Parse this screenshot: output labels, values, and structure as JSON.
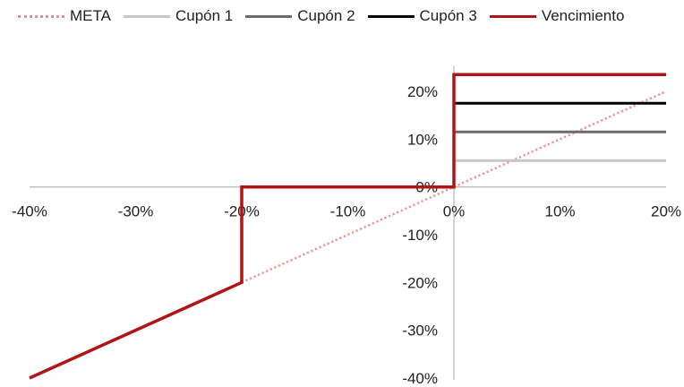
{
  "chart_data": {
    "type": "line",
    "title": "",
    "xlabel": "",
    "ylabel": "",
    "xlim": [
      -0.4,
      0.2
    ],
    "ylim": [
      -0.4,
      0.25
    ],
    "x_ticks": [
      -0.4,
      -0.3,
      -0.2,
      -0.1,
      0,
      0.1,
      0.2
    ],
    "x_tick_labels": [
      "-40%",
      "-30%",
      "-20%",
      "-10%",
      "0%",
      "10%",
      "20%"
    ],
    "y_ticks": [
      0.2,
      0.1,
      0,
      -0.1,
      -0.2,
      -0.3,
      -0.4
    ],
    "y_tick_labels": [
      "20%",
      "10%",
      "0%",
      "-10%",
      "-20%",
      "-30%",
      "-40%"
    ],
    "grid": false,
    "legend_position": "top",
    "series": [
      {
        "name": "META",
        "color": "#f08a8a",
        "style": "dotted",
        "points": [
          [
            -0.2,
            -0.2
          ],
          [
            0.2,
            0.2
          ]
        ]
      },
      {
        "name": "Cupón 1",
        "color": "#c6c6c6",
        "style": "solid",
        "points": [
          [
            0,
            0.055
          ],
          [
            0.2,
            0.055
          ]
        ]
      },
      {
        "name": "Cupón 2",
        "color": "#6b6b6b",
        "style": "solid",
        "points": [
          [
            0,
            0.115
          ],
          [
            0.2,
            0.115
          ]
        ]
      },
      {
        "name": "Cupón 3",
        "color": "#000000",
        "style": "solid",
        "points": [
          [
            0,
            0.175
          ],
          [
            0.2,
            0.175
          ]
        ]
      },
      {
        "name": "Vencimiento",
        "color": "#b01414",
        "style": "solid",
        "points": [
          [
            -0.4,
            -0.4
          ],
          [
            -0.2,
            -0.2
          ],
          [
            -0.2,
            0
          ],
          [
            0,
            0
          ],
          [
            0,
            0.235
          ],
          [
            0.2,
            0.235
          ]
        ]
      }
    ]
  }
}
